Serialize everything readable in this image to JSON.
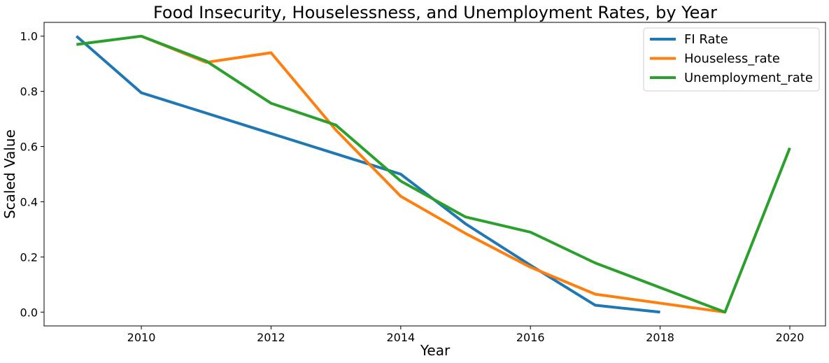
{
  "chart_data": {
    "type": "line",
    "title": "Food Insecurity, Houselessness, and Unemployment Rates, by Year",
    "xlabel": "Year",
    "ylabel": "Scaled Value",
    "xlim": [
      2008.5,
      2020.55
    ],
    "ylim": [
      -0.05,
      1.05
    ],
    "x_ticks": [
      2010,
      2012,
      2014,
      2016,
      2018,
      2020
    ],
    "x_tick_labels": [
      "2010",
      "2012",
      "2014",
      "2016",
      "2018",
      "2020"
    ],
    "y_ticks": [
      0.0,
      0.2,
      0.4,
      0.6,
      0.8,
      1.0
    ],
    "y_tick_labels": [
      "0.0",
      "0.2",
      "0.4",
      "0.6",
      "0.8",
      "1.0"
    ],
    "grid": false,
    "legend_position": "top-right",
    "series": [
      {
        "name": "FI Rate",
        "color": "#1f77b4",
        "x": [
          2009,
          2010,
          2014,
          2015,
          2016,
          2017,
          2018
        ],
        "y": [
          1.0,
          0.795,
          0.5,
          0.32,
          0.17,
          0.025,
          0.0
        ]
      },
      {
        "name": "Houseless_rate",
        "color": "#ff7f0e",
        "x": [
          2010,
          2011,
          2012,
          2013,
          2014,
          2015,
          2016,
          2017,
          2019
        ],
        "y": [
          1.0,
          0.905,
          0.94,
          0.66,
          0.42,
          0.285,
          0.163,
          0.065,
          0.0
        ]
      },
      {
        "name": "Unemployment_rate",
        "color": "#2ca02c",
        "x": [
          2009,
          2010,
          2011,
          2012,
          2013,
          2014,
          2015,
          2016,
          2017,
          2019,
          2020
        ],
        "y": [
          0.97,
          1.0,
          0.91,
          0.757,
          0.678,
          0.475,
          0.345,
          0.29,
          0.178,
          0.0,
          0.595
        ]
      }
    ]
  }
}
